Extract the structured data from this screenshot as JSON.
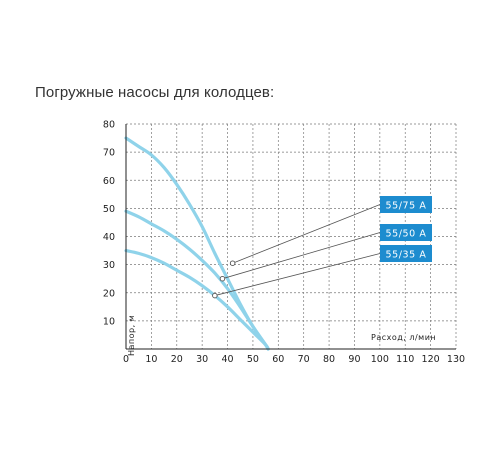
{
  "title": "Погружные насосы для колодцев:",
  "colors": {
    "curve": "#8fd3ea",
    "badge": "#1d8ccf",
    "grid": "#7a7a7a",
    "axis": "#222222",
    "leader": "#555555"
  },
  "chart_data": {
    "type": "line",
    "title": "Погружные насосы для колодцев:",
    "xlabel": "Расход, л/мин",
    "ylabel": "Напор, м",
    "xlim": [
      0,
      130
    ],
    "ylim": [
      0,
      80
    ],
    "xticks": [
      10,
      20,
      30,
      40,
      50,
      60,
      70,
      80,
      90,
      100,
      110,
      120,
      130
    ],
    "yticks": [
      10,
      20,
      30,
      40,
      50,
      60,
      70,
      80
    ],
    "x_origin_label": "0",
    "grid": true,
    "series": [
      {
        "name": "55/75 A",
        "x": [
          0,
          5,
          10,
          15,
          20,
          25,
          30,
          35,
          40,
          45,
          50,
          55,
          56
        ],
        "y": [
          75,
          72,
          69,
          64.5,
          58.5,
          51.5,
          43.5,
          34,
          25,
          16,
          8,
          1.5,
          0
        ],
        "marker": [
          42,
          30.5
        ]
      },
      {
        "name": "55/50 A",
        "x": [
          0,
          5,
          10,
          15,
          20,
          25,
          30,
          35,
          40,
          45,
          50,
          55,
          56
        ],
        "y": [
          49,
          47,
          44.5,
          42,
          39,
          35.5,
          31.5,
          27,
          21.5,
          15,
          8,
          1.5,
          0
        ],
        "marker": [
          38,
          25
        ]
      },
      {
        "name": "55/35 A",
        "x": [
          0,
          5,
          10,
          15,
          20,
          25,
          30,
          35,
          40,
          45,
          50,
          55,
          56
        ],
        "y": [
          35,
          34,
          32.5,
          30.5,
          28,
          25.5,
          22.5,
          19,
          15,
          10.5,
          6,
          1.5,
          0
        ],
        "marker": [
          35,
          19
        ]
      }
    ]
  }
}
